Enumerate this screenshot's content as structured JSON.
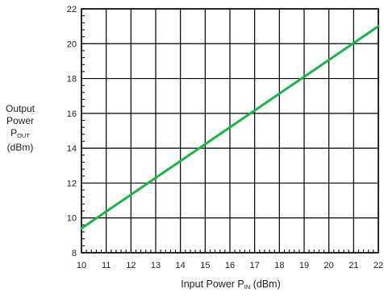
{
  "chart_data": {
    "type": "line",
    "title": "",
    "xlabel": "Input Power P",
    "xlabel_sub": "IN",
    "xlabel_unit": "(dBm)",
    "ylabel_lines": [
      "Output",
      "Power",
      "P"
    ],
    "ylabel_sub": "OUT",
    "ylabel_unit": "(dBm)",
    "xlim": [
      10,
      22
    ],
    "ylim": [
      8,
      22
    ],
    "xticks": [
      10,
      11,
      12,
      13,
      14,
      15,
      16,
      17,
      18,
      19,
      20,
      21,
      22
    ],
    "yticks": [
      8,
      10,
      12,
      14,
      16,
      18,
      20,
      22
    ],
    "grid": true,
    "series": [
      {
        "color": "#1db34a",
        "x": [
          10,
          22
        ],
        "y": [
          9.4,
          21.0
        ]
      }
    ]
  }
}
